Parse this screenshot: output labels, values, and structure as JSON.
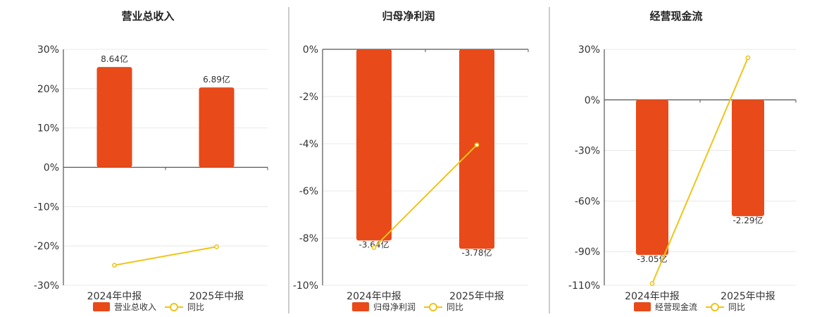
{
  "colors": {
    "bar": "#E84A1A",
    "line": "#F0C419"
  },
  "legend_yoy": "同比",
  "chart_data": [
    {
      "type": "bar",
      "title": "营业总收入",
      "categories": [
        "2024年中报",
        "2025年中报"
      ],
      "series": [
        {
          "name": "营业总收入",
          "type": "bar",
          "values": [
            25.5,
            20.3
          ],
          "labels": [
            "8.64亿",
            "6.89亿"
          ]
        },
        {
          "name": "同比",
          "type": "line",
          "values": [
            -24.9,
            -20.2
          ]
        }
      ],
      "ylim": [
        -30,
        30
      ],
      "yticks": [
        30,
        20,
        10,
        0,
        -10,
        -20,
        -30
      ],
      "ytick_labels": [
        "30%",
        "20%",
        "10%",
        "0%",
        "-10%",
        "-20%",
        "-30%"
      ],
      "legend": "bottom"
    },
    {
      "type": "bar",
      "title": "归母净利润",
      "categories": [
        "2024年中报",
        "2025年中报"
      ],
      "series": [
        {
          "name": "归母净利润",
          "type": "bar",
          "values": [
            -8.1,
            -8.45
          ],
          "labels": [
            "-3.64亿",
            "-3.78亿"
          ]
        },
        {
          "name": "同比",
          "type": "line",
          "values": [
            -8.4,
            -4.05
          ]
        }
      ],
      "ylim": [
        -10,
        0
      ],
      "yticks": [
        0,
        -2,
        -4,
        -6,
        -8,
        -10
      ],
      "ytick_labels": [
        "0%",
        "-2%",
        "-4%",
        "-6%",
        "-8%",
        "-10%"
      ],
      "legend": "bottom"
    },
    {
      "type": "bar",
      "title": "经营现金流",
      "categories": [
        "2024年中报",
        "2025年中报"
      ],
      "series": [
        {
          "name": "经营现金流",
          "type": "bar",
          "values": [
            -92,
            -69
          ],
          "labels": [
            "-3.05亿",
            "-2.29亿"
          ]
        },
        {
          "name": "同比",
          "type": "line",
          "values": [
            -109,
            25
          ]
        }
      ],
      "ylim": [
        -110,
        30
      ],
      "yticks": [
        30,
        0,
        -30,
        -60,
        -90,
        -110
      ],
      "ytick_labels": [
        "30%",
        "0%",
        "-30%",
        "-60%",
        "-90%",
        "-110%"
      ],
      "legend": "bottom"
    }
  ]
}
